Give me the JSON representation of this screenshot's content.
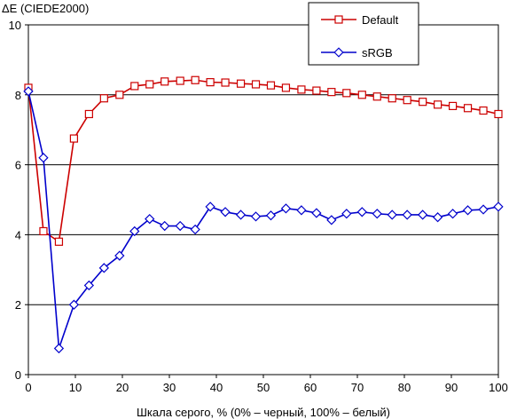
{
  "chart_data": {
    "type": "line",
    "title": "",
    "ylabel": "ΔE (CIEDE2000)",
    "xlabel": "Шкала серого, % (0% – черный, 100% – белый)",
    "xlim": [
      0,
      100
    ],
    "ylim": [
      0,
      10
    ],
    "xticks": [
      0,
      10,
      20,
      30,
      40,
      50,
      60,
      70,
      80,
      90,
      100
    ],
    "yticks": [
      0,
      2,
      4,
      6,
      8,
      10
    ],
    "grid": "horizontal",
    "legend_position": "top-right",
    "x": [
      0,
      3.2,
      6.5,
      9.7,
      12.9,
      16.1,
      19.4,
      22.6,
      25.8,
      29.0,
      32.3,
      35.5,
      38.7,
      41.9,
      45.2,
      48.4,
      51.6,
      54.8,
      58.1,
      61.3,
      64.5,
      67.7,
      71.0,
      74.2,
      77.4,
      80.6,
      83.9,
      87.1,
      90.3,
      93.5,
      96.8,
      100
    ],
    "series": [
      {
        "name": "Default",
        "color": "#cc0000",
        "marker": "square",
        "values": [
          8.2,
          4.1,
          3.8,
          6.75,
          7.45,
          7.9,
          8.0,
          8.25,
          8.3,
          8.38,
          8.4,
          8.42,
          8.36,
          8.35,
          8.32,
          8.3,
          8.27,
          8.2,
          8.15,
          8.12,
          8.08,
          8.05,
          8.0,
          7.95,
          7.9,
          7.85,
          7.8,
          7.72,
          7.68,
          7.62,
          7.55,
          7.45
        ]
      },
      {
        "name": "sRGB",
        "color": "#0000cc",
        "marker": "diamond",
        "values": [
          8.1,
          6.2,
          0.75,
          2.0,
          2.55,
          3.05,
          3.4,
          4.1,
          4.45,
          4.25,
          4.25,
          4.15,
          4.8,
          4.65,
          4.57,
          4.52,
          4.55,
          4.75,
          4.7,
          4.62,
          4.42,
          4.6,
          4.65,
          4.6,
          4.57,
          4.57,
          4.57,
          4.5,
          4.6,
          4.7,
          4.72,
          4.8
        ]
      }
    ]
  }
}
